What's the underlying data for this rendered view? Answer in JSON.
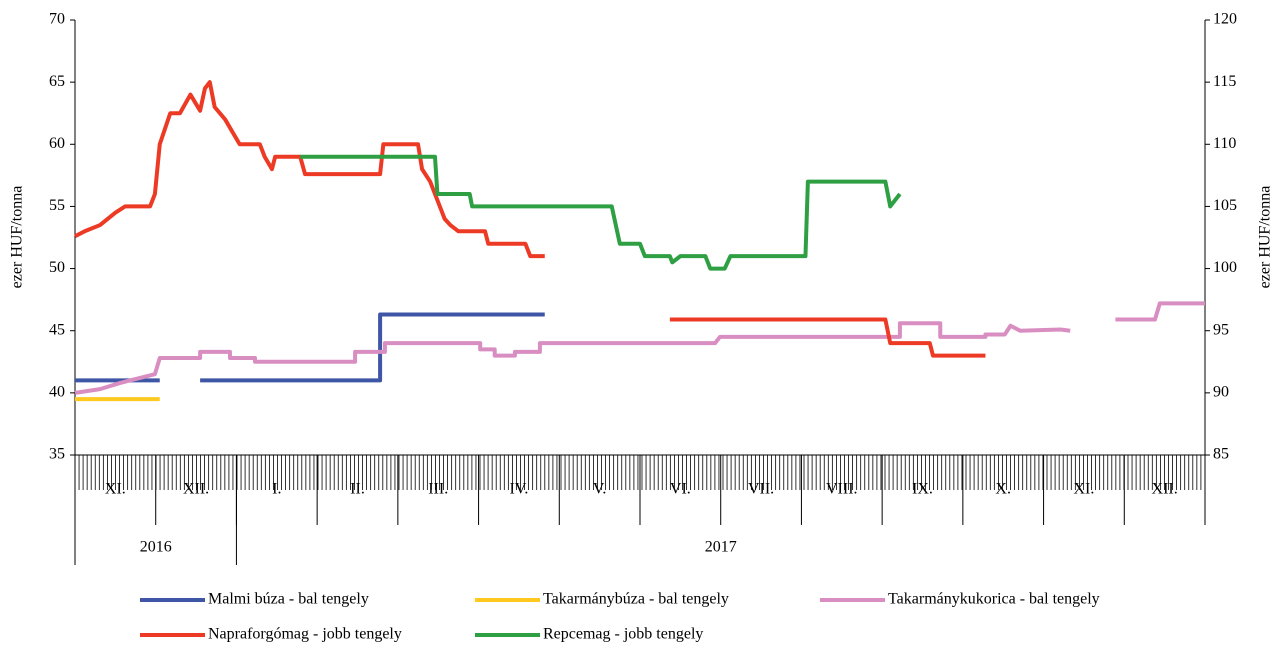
{
  "chart_data": {
    "type": "line",
    "y_label": "ezer HUF/tonna",
    "y2_label": "ezer HUF/tonna",
    "months": [
      "XI.",
      "XII.",
      "I.",
      "II.",
      "III.",
      "IV.",
      "V.",
      "VI.",
      "VII.",
      "VIII.",
      "IX.",
      "X.",
      "XI.",
      "XII."
    ],
    "years": [
      "2016",
      "2017"
    ],
    "xlim": [
      0,
      14
    ],
    "ylim": [
      35,
      70
    ],
    "yticks": [
      35,
      40,
      45,
      50,
      55,
      60,
      65,
      70
    ],
    "y2lim": [
      85,
      120
    ],
    "y2ticks": [
      85,
      90,
      95,
      100,
      105,
      110,
      115,
      120
    ],
    "grid": false,
    "legend": "bottom",
    "series": [
      {
        "name": "Malmi búza - bal tengely",
        "color": "#3f56a6",
        "x": [
          0,
          1.05,
          1.3,
          1.55,
          3.78,
          3.78,
          5.82
        ],
        "values": [
          41,
          41,
          null,
          41,
          41,
          46.3,
          46.3
        ]
      },
      {
        "name": "Takarmánybúza - bal tengely",
        "color": "#ffc91f",
        "x": [
          0,
          1.05
        ],
        "values": [
          39.5,
          39.5
        ]
      },
      {
        "name": "Takarmánykukorica - bal tengely",
        "color": "#d98ec2",
        "x": [
          0,
          0.31,
          0.56,
          0.99,
          1.05,
          1.55,
          1.55,
          1.92,
          1.92,
          2.23,
          2.23,
          3.47,
          3.47,
          3.84,
          3.84,
          5.02,
          5.02,
          5.2,
          5.2,
          5.45,
          5.45,
          5.76,
          5.76,
          7.93,
          7.99,
          10.22,
          10.22,
          10.72,
          10.72,
          11.28,
          11.28,
          11.52,
          11.59,
          11.71,
          12.21,
          12.33,
          12.6,
          12.89,
          13.38,
          13.44,
          14
        ],
        "values": [
          40,
          40.3,
          40.8,
          41.5,
          42.8,
          42.8,
          43.3,
          43.3,
          42.8,
          42.8,
          42.5,
          42.5,
          43.3,
          43.3,
          44,
          44,
          43.5,
          43.5,
          43,
          43,
          43.3,
          43.3,
          44,
          44,
          44.5,
          44.5,
          45.6,
          45.6,
          44.5,
          44.5,
          44.7,
          44.7,
          45.4,
          45,
          45.1,
          45,
          null,
          45.9,
          45.9,
          47.2,
          47.2
        ]
      },
      {
        "name": "Napraforgómag - jobb tengely",
        "color": "#ec3a25",
        "axis": "y2",
        "x": [
          0,
          0.12,
          0.31,
          0.5,
          0.62,
          0.93,
          0.99,
          1.05,
          1.18,
          1.3,
          1.43,
          1.55,
          1.61,
          1.67,
          1.73,
          1.86,
          1.95,
          2.04,
          2.29,
          2.35,
          2.44,
          2.48,
          2.79,
          2.85,
          3.78,
          3.82,
          4.25,
          4.3,
          4.4,
          4.52,
          4.58,
          4.65,
          4.75,
          5.08,
          5.12,
          5.58,
          5.64,
          5.82,
          6.5,
          7.37,
          10.04,
          10.1,
          10.59,
          10.63,
          11.28
        ],
        "values": [
          102.6,
          103,
          103.5,
          104.5,
          105,
          105,
          106,
          110,
          112.5,
          112.5,
          114,
          112.7,
          114.5,
          115,
          113,
          112,
          111,
          110,
          110,
          109,
          108,
          109,
          109,
          107.6,
          107.6,
          110,
          110,
          108,
          107,
          105,
          104,
          103.5,
          103,
          103,
          102,
          102,
          101,
          101,
          null,
          95.9,
          95.9,
          94,
          94,
          93,
          93
        ]
      },
      {
        "name": "Repcemag - jobb tengely",
        "color": "#2ea043",
        "axis": "y2",
        "x": [
          2.79,
          4.46,
          4.49,
          4.89,
          4.92,
          6.65,
          6.75,
          7.0,
          7.06,
          7.37,
          7.4,
          7.5,
          7.81,
          7.87,
          8.05,
          8.12,
          9.05,
          9.08,
          10.04,
          10.1,
          10.22
        ],
        "values": [
          109,
          109,
          106,
          106,
          105,
          105,
          102,
          102,
          101,
          101,
          100.5,
          101,
          101,
          100,
          100,
          101,
          101,
          107,
          107,
          105,
          106
        ]
      }
    ]
  }
}
